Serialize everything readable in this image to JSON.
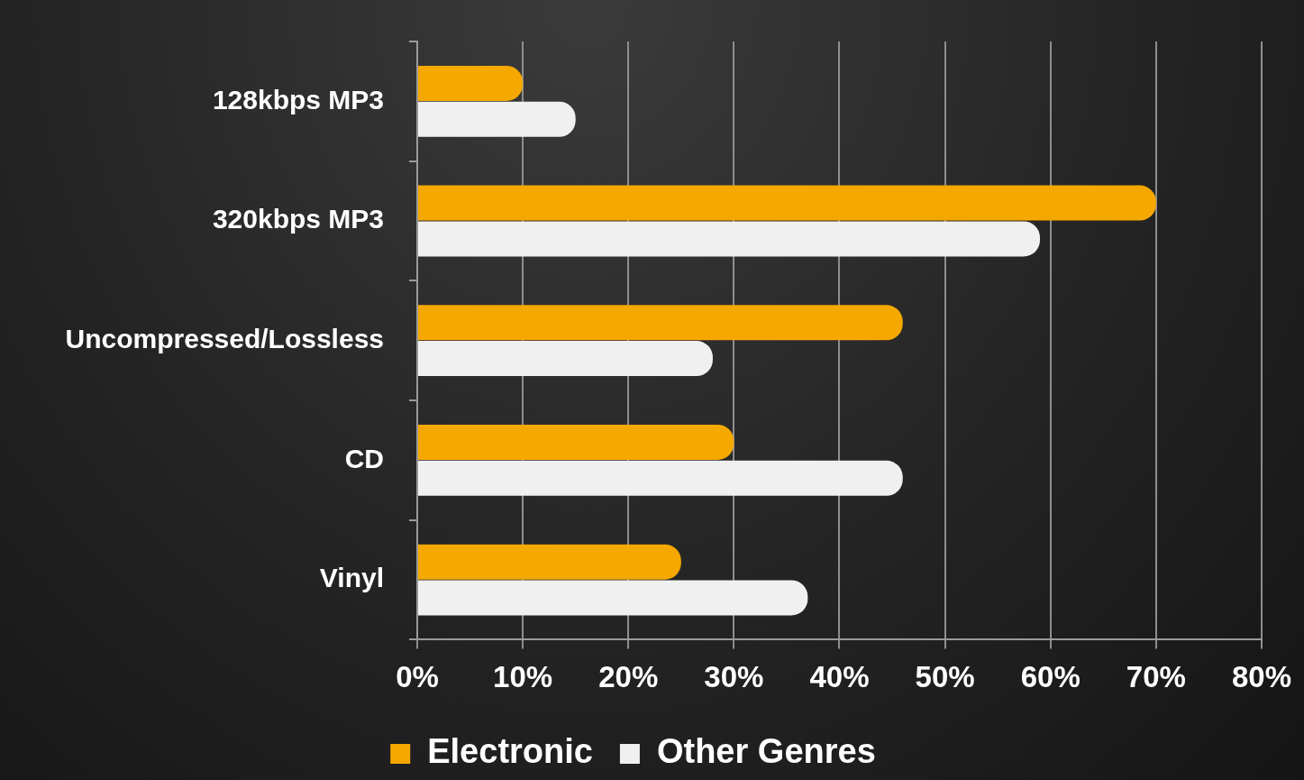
{
  "chart_data": {
    "type": "bar",
    "orientation": "horizontal",
    "categories": [
      "128kbps MP3",
      "320kbps MP3",
      "Uncompressed/Lossless",
      "CD",
      "Vinyl"
    ],
    "series": [
      {
        "name": "Electronic",
        "color": "#f5a800",
        "values": [
          10,
          70,
          46,
          30,
          25
        ]
      },
      {
        "name": "Other Genres",
        "color": "#f0f0f0",
        "values": [
          15,
          59,
          28,
          46,
          37
        ]
      }
    ],
    "xlim": [
      0,
      80
    ],
    "xticks": [
      {
        "value": 0,
        "label": "0%"
      },
      {
        "value": 10,
        "label": "10%"
      },
      {
        "value": 20,
        "label": "20%"
      },
      {
        "value": 30,
        "label": "30%"
      },
      {
        "value": 40,
        "label": "40%"
      },
      {
        "value": 50,
        "label": "50%"
      },
      {
        "value": 60,
        "label": "60%"
      },
      {
        "value": 70,
        "label": "70%"
      },
      {
        "value": 80,
        "label": "80%"
      }
    ],
    "grid": "x",
    "legend": "bottom"
  }
}
